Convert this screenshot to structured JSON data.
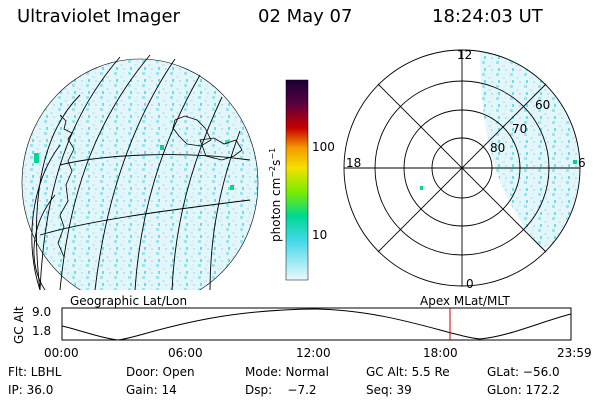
{
  "header": {
    "title": "Ultraviolet Imager",
    "date": "02 May 07",
    "time": "18:24:03 UT"
  },
  "colorbar": {
    "unit_label": "photon cm",
    "unit_exp1": "−2",
    "unit_mid": "s",
    "unit_exp2": "−1",
    "ticks": [
      "100",
      "10"
    ],
    "colors": [
      "#1a0033",
      "#3a0050",
      "#6a0040",
      "#9a0020",
      "#c80000",
      "#e84000",
      "#f59a00",
      "#f5d200",
      "#e6f500",
      "#9af000",
      "#33e000",
      "#00d890",
      "#00c8e0",
      "#b0e8f0",
      "#e8f8fb"
    ]
  },
  "polar_map": {
    "mlt_labels": [
      "12",
      "18",
      "6",
      "0"
    ],
    "mlat_labels": [
      "60",
      "70",
      "80"
    ]
  },
  "geo_map": {
    "left_label": "Geographic Lat/Lon",
    "right_label": "Apex MLat/MLT"
  },
  "alt_plot": {
    "ylabel": "GC Alt",
    "yticks": [
      "9.0",
      "1.8"
    ],
    "xticks": [
      "00:00",
      "06:00",
      "12:00",
      "18:00",
      "23:59"
    ],
    "marker_color": "#d00000"
  },
  "info": {
    "flt": "Flt: LBHL",
    "door": "Door: Open",
    "mode": "Mode: Normal",
    "gcalt": "GC Alt: 5.5 Re",
    "glat": "GLat: −56.0",
    "ip": "IP: 36.0",
    "gain": "Gain: 14",
    "dsp": "Dsp:    −7.2",
    "seq": "Seq: 39",
    "glon": "GLon: 172.2"
  },
  "accent": {
    "speckle": "#6fdcec",
    "speckle2": "#00d890"
  }
}
